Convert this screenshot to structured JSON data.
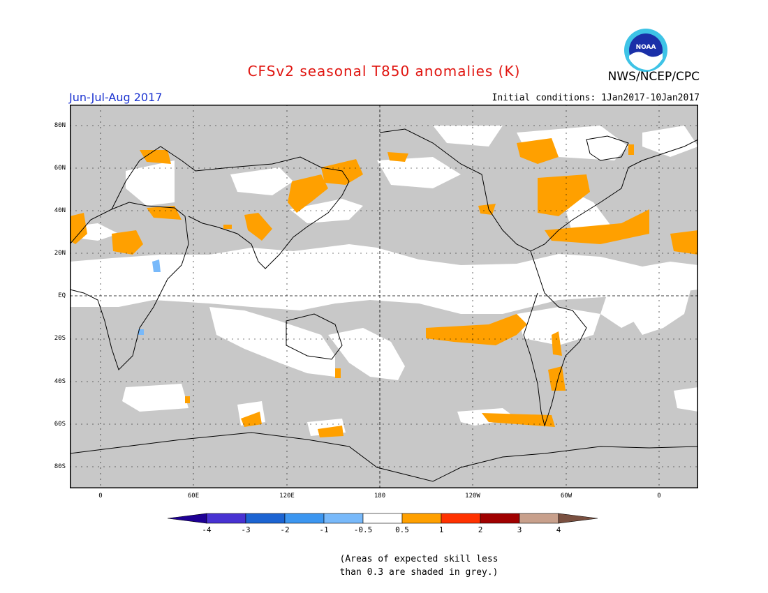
{
  "title": "CFSv2 seasonal T850 anomalies (K)",
  "agency": "NWS/NCEP/CPC",
  "period": "Jun-Jul-Aug 2017",
  "initial_conditions": "Initial conditions: 1Jan2017-10Jan2017",
  "logo_text": "NOAA",
  "lat_labels": [
    "80N",
    "60N",
    "40N",
    "20N",
    "EQ",
    "20S",
    "40S",
    "60S",
    "80S"
  ],
  "lon_labels": [
    "0",
    "60E",
    "120E",
    "180",
    "120W",
    "60W",
    "0"
  ],
  "colorbar": {
    "labels": [
      "-4",
      "-3",
      "-2",
      "-1",
      "-0.5",
      "0.5",
      "1",
      "2",
      "3",
      "4"
    ],
    "colors": [
      "#1e0094",
      "#4832d2",
      "#1c64d2",
      "#3c96f0",
      "#78b9fa",
      "#ffffff",
      "#ffa000",
      "#ff3200",
      "#a00000",
      "#c8a08c",
      "#7a5040"
    ]
  },
  "note_lines": [
    "(Areas of expected skill less",
    "than 0.3 are shaded in grey.)"
  ],
  "colors": {
    "skill_grey": "#c8c8c8",
    "positive": "#ffa000",
    "negative": "#78b9fa"
  }
}
